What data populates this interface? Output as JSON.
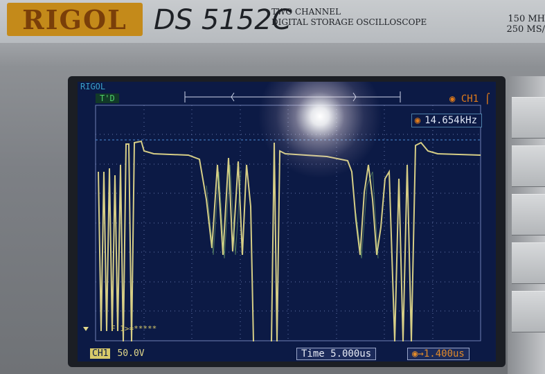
{
  "brand": "RIGOL",
  "model": "DS 5152C",
  "description": [
    "TWO CHANNEL",
    "DIGITAL STORAGE OSCILLOSCOPE"
  ],
  "specs": [
    "150 MH",
    "250 MS/"
  ],
  "screen": {
    "brand_label": "RIGOL",
    "trigger_state": "T'D",
    "channel": "CH1",
    "frequency": "14.654kHz",
    "math_line": "F 1>=*****",
    "channel_chip": "CH1",
    "volts_per_div": "50.0V",
    "time_base": "Time 5.000us",
    "trigger_offset": "1.400us"
  },
  "colors": {
    "screen_bg": "#0c1a45",
    "trace": "#e2d88a",
    "grid": "#6f80b5",
    "accent": "#e07b1a"
  }
}
